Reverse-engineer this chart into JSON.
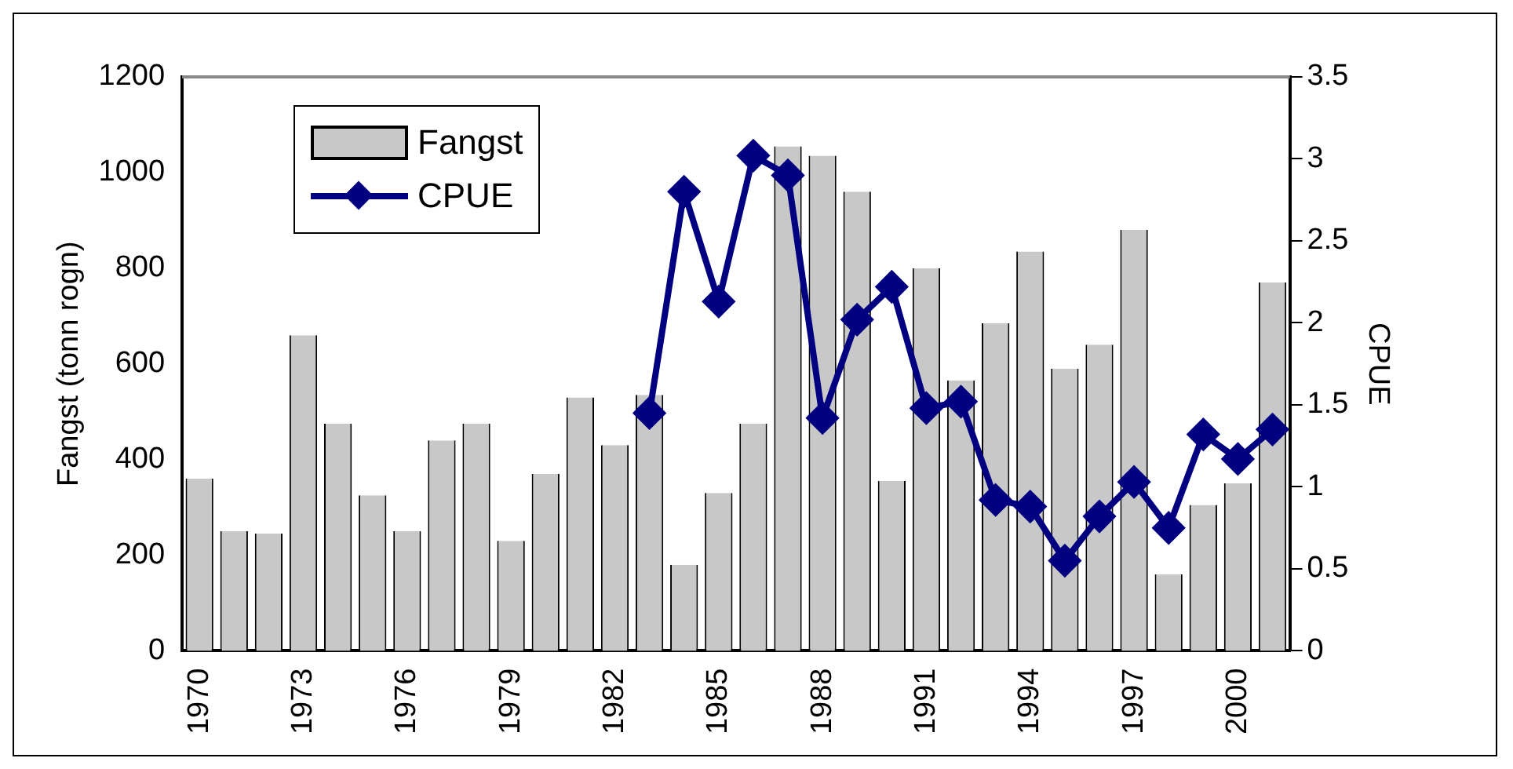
{
  "chart_data": {
    "type": "bar",
    "categories": [
      "1970",
      null,
      null,
      "1973",
      null,
      null,
      "1976",
      null,
      null,
      "1979",
      null,
      null,
      "1982",
      null,
      null,
      "1985",
      null,
      null,
      "1988",
      null,
      null,
      "1991",
      null,
      null,
      "1994",
      null,
      null,
      "1997",
      null,
      null,
      "2000",
      null
    ],
    "series": [
      {
        "name": "Fangst",
        "color": "#c8c8c8",
        "values": [
          360,
          250,
          245,
          660,
          475,
          325,
          250,
          440,
          475,
          230,
          370,
          530,
          430,
          535,
          180,
          330,
          475,
          1055,
          1035,
          960,
          355,
          800,
          565,
          685,
          835,
          590,
          640,
          880,
          160,
          305,
          350,
          770
        ]
      },
      {
        "name": "CPUE",
        "type": "line",
        "axis": "y2",
        "color": "#000080",
        "values": [
          null,
          null,
          null,
          null,
          null,
          null,
          null,
          null,
          null,
          null,
          null,
          null,
          null,
          1.45,
          2.8,
          2.13,
          3.02,
          2.9,
          1.42,
          2.02,
          2.22,
          1.48,
          1.52,
          0.92,
          0.88,
          0.55,
          0.82,
          1.03,
          0.75,
          1.32,
          1.17,
          1.35
        ]
      }
    ],
    "ylabel": "Fangst (tonn rogn)",
    "y2label": "CPUE",
    "ylim": [
      0,
      1200
    ],
    "yticks": [
      0,
      200,
      400,
      600,
      800,
      1000,
      1200
    ],
    "y2lim": [
      0,
      3.5
    ],
    "y2ticks": [
      0,
      0.5,
      1,
      1.5,
      2,
      2.5,
      3,
      3.5
    ],
    "legend": "top left",
    "marker": "diamond",
    "grid": false
  }
}
